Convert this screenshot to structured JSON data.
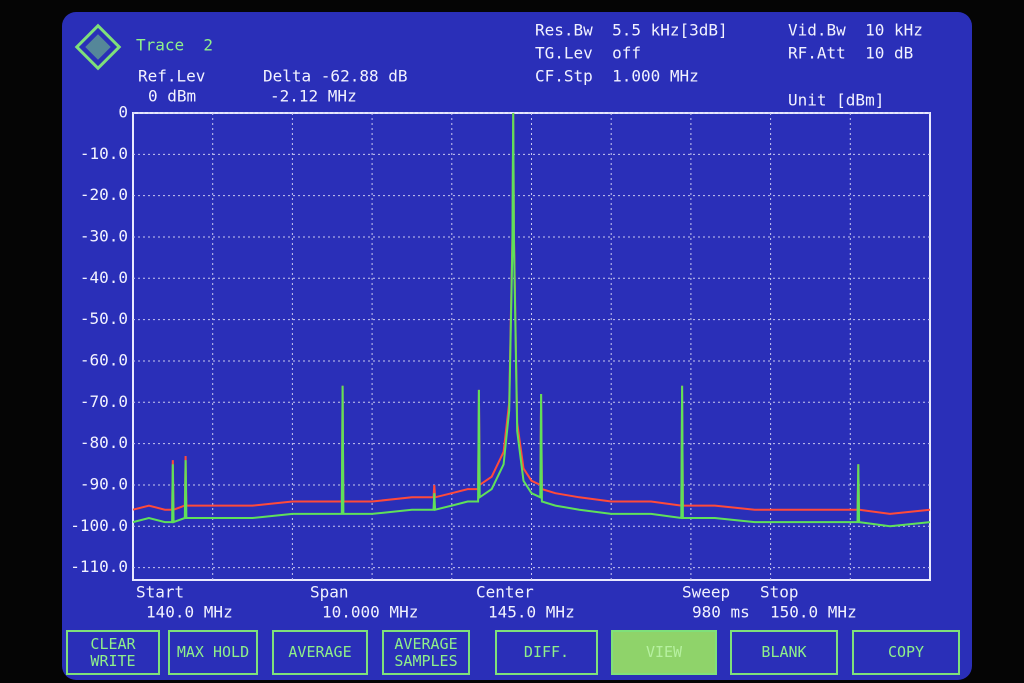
{
  "header": {
    "trace": "Trace  2",
    "ref_lev_label": "Ref.Lev",
    "ref_lev_value": "0 dBm",
    "delta": "Delta -62.88 dB",
    "delta_freq": "-2.12 MHz",
    "res_bw": "Res.Bw  5.5 kHz[3dB]",
    "tg_lev": "TG.Lev  off",
    "cf_stp": "CF.Stp  1.000 MHz",
    "vid_bw": "Vid.Bw  10 kHz",
    "rf_att": "RF.Att  10 dB",
    "unit": "Unit [dBm]"
  },
  "chart_data": {
    "type": "line",
    "x": [
      140.0,
      140.2,
      140.4,
      140.49,
      140.5,
      140.51,
      140.65,
      140.66,
      140.67,
      141.0,
      141.5,
      142.0,
      142.4,
      142.62,
      142.63,
      142.64,
      143.0,
      143.5,
      143.77,
      143.78,
      143.79,
      144.0,
      144.2,
      144.33,
      144.34,
      144.35,
      144.5,
      144.65,
      144.72,
      144.76,
      144.77,
      144.78,
      144.82,
      144.9,
      145.0,
      145.11,
      145.12,
      145.13,
      145.3,
      145.6,
      146.0,
      146.5,
      146.88,
      146.89,
      146.9,
      147.3,
      147.8,
      148.3,
      148.8,
      149.09,
      149.1,
      149.11,
      149.5,
      150.0
    ],
    "series": [
      {
        "color": "#ff4a3a",
        "values": [
          -96,
          -95,
          -96,
          -96,
          -84,
          -96,
          -95,
          -83,
          -95,
          -95,
          -95,
          -94,
          -94,
          -94,
          -66,
          -94,
          -94,
          -93,
          -93,
          -90,
          -93,
          -92,
          -91,
          -91,
          -67,
          -90,
          -88,
          -82,
          -70,
          -30,
          0,
          -30,
          -75,
          -86,
          -89,
          -90,
          -68,
          -91,
          -92,
          -93,
          -94,
          -94,
          -95,
          -66,
          -95,
          -95,
          -96,
          -96,
          -96,
          -96,
          -85,
          -96,
          -97,
          -96
        ]
      },
      {
        "color": "#5fe05a",
        "values": [
          -99,
          -98,
          -99,
          -99,
          -85,
          -99,
          -98,
          -84,
          -98,
          -98,
          -98,
          -97,
          -97,
          -97,
          -66,
          -97,
          -97,
          -96,
          -96,
          -92,
          -96,
          -95,
          -94,
          -94,
          -67,
          -93,
          -91,
          -85,
          -72,
          -32,
          0,
          -32,
          -77,
          -89,
          -92,
          -93,
          -68,
          -94,
          -95,
          -96,
          -97,
          -97,
          -98,
          -66,
          -98,
          -98,
          -99,
          -99,
          -99,
          -99,
          -85,
          -99,
          -100,
          -99
        ]
      }
    ],
    "xlim": [
      140,
      150
    ],
    "ylim": [
      -113,
      0
    ],
    "yticks": [
      0,
      {
        "value": -10,
        "label": "-10.0"
      },
      {
        "value": -20,
        "label": "-20.0"
      },
      {
        "value": -30,
        "label": "-30.0"
      },
      {
        "value": -40,
        "label": "-40.0"
      },
      {
        "value": -50,
        "label": "-50.0"
      },
      {
        "value": -60,
        "label": "-60.0"
      },
      {
        "value": -70,
        "label": "-70.0"
      },
      {
        "value": -80,
        "label": "-80.0"
      },
      {
        "value": -90,
        "label": "-90.0"
      },
      {
        "value": -100,
        "label": "-100.0"
      },
      {
        "value": -110,
        "label": "-110.0"
      }
    ],
    "grid": true
  },
  "footer": {
    "start_label": "Start",
    "start_value": "140.0 MHz",
    "span_label": "Span",
    "span_value": "10.000 MHz",
    "center_label": "Center",
    "center_value": "145.0 MHz",
    "sweep_label": "Sweep",
    "sweep_value": "980 ms",
    "stop_label": "Stop",
    "stop_value": "150.0 MHz"
  },
  "buttons": [
    "CLEAR\nWRITE",
    "MAX HOLD",
    "AVERAGE",
    "AVERAGE\nSAMPLES",
    "DIFF.",
    "VIEW",
    "BLANK",
    "COPY"
  ]
}
